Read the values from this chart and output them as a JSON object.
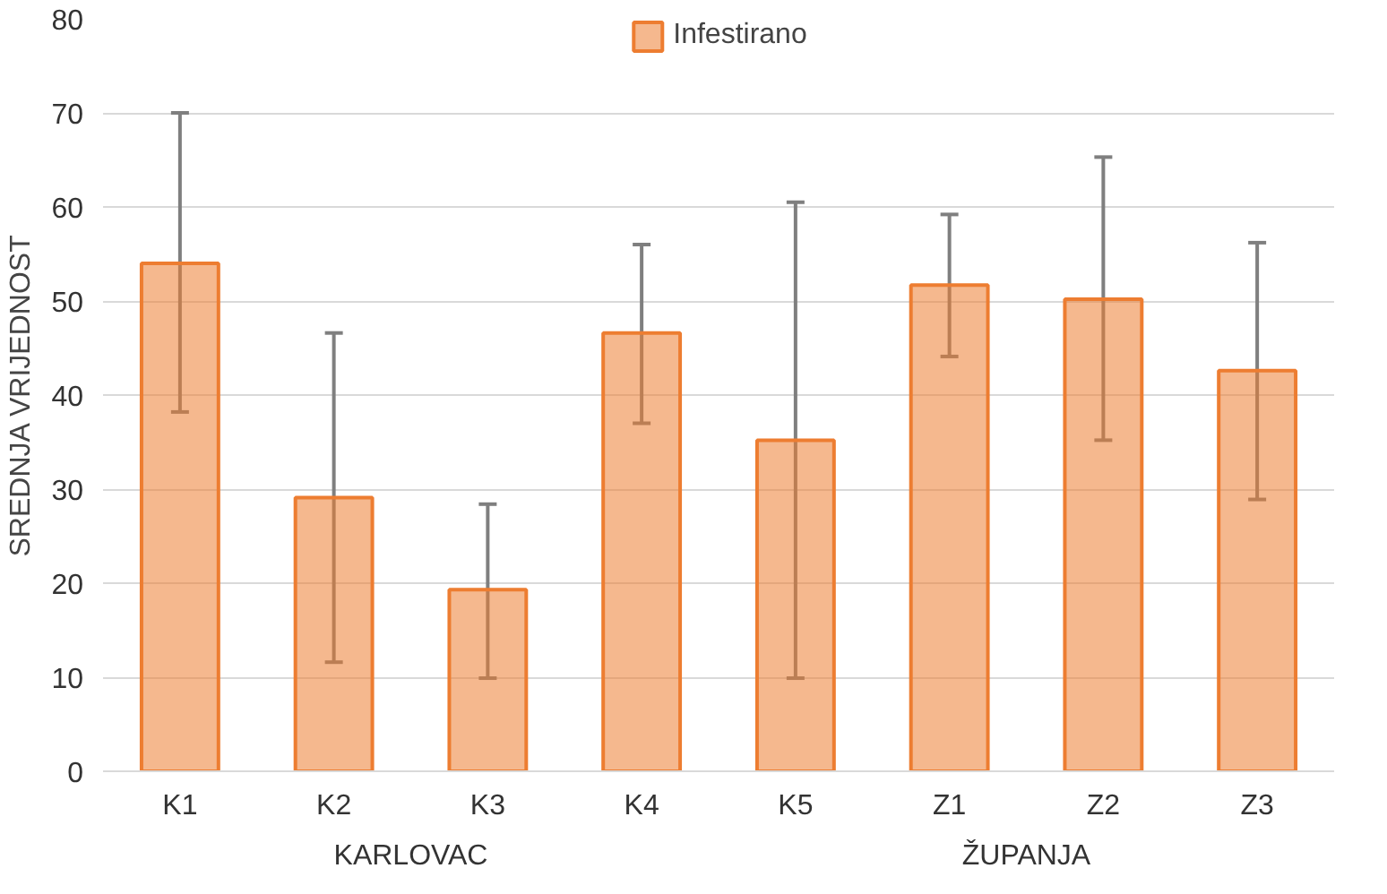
{
  "chart_data": {
    "type": "bar",
    "ylabel": "SREDNJA VRIJEDNOST",
    "categories": [
      "K1",
      "K2",
      "K3",
      "K4",
      "K5",
      "Z1",
      "Z2",
      "Z3"
    ],
    "series": [
      {
        "name": "Infestirano",
        "color": "#ed7d31",
        "values": [
          54,
          29.1,
          19.3,
          46.6,
          35.2,
          51.7,
          50.2,
          42.6
        ],
        "errors": [
          [
            38.2,
            70
          ],
          [
            11.6,
            46.6
          ],
          [
            9.9,
            28.4
          ],
          [
            37,
            56
          ],
          [
            9.9,
            60.5
          ],
          [
            44.1,
            59.2
          ],
          [
            35.2,
            65.3
          ],
          [
            28.9,
            56.2
          ]
        ]
      }
    ],
    "ylim": [
      0,
      80
    ],
    "yticks": [
      0,
      10,
      20,
      30,
      40,
      50,
      60,
      70,
      80
    ],
    "grid": "y",
    "legend": "top",
    "annotations": [
      "KARLOVAC",
      "ŽUPANJA"
    ]
  }
}
